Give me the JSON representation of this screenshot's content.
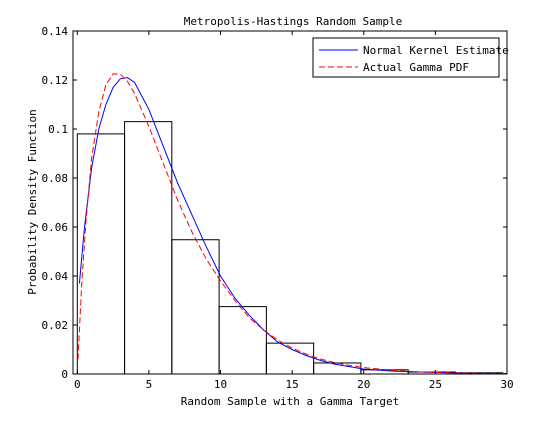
{
  "chart_data": {
    "type": "bar",
    "title": "Metropolis-Hastings Random Sample",
    "xlabel": "Random Sample with a Gamma Target",
    "ylabel": "Probability Density Function",
    "xlim": [
      -0.3,
      30
    ],
    "ylim": [
      0,
      0.14
    ],
    "xticks": [
      0,
      5,
      10,
      15,
      20,
      25,
      30
    ],
    "xtick_labels": [
      "0",
      "5",
      "10",
      "15",
      "20",
      "25",
      "30"
    ],
    "yticks": [
      0,
      0.02,
      0.04,
      0.06,
      0.08,
      0.1,
      0.12,
      0.14
    ],
    "ytick_labels": [
      "0",
      "0.02",
      "0.04",
      "0.06",
      "0.08",
      "0.1",
      "0.12",
      "0.14"
    ],
    "grid": false,
    "legend_position": "top-right",
    "histogram": {
      "bin_edges": [
        0,
        3.3,
        6.6,
        9.9,
        13.2,
        16.5,
        19.8,
        23.1,
        26.4,
        29.7
      ],
      "values": [
        0.098,
        0.103,
        0.0548,
        0.0275,
        0.0126,
        0.0045,
        0.0017,
        0.0008,
        0.0005
      ],
      "color": "#000000"
    },
    "series": [
      {
        "name": "Normal Kernel Estimate",
        "style": "solid",
        "color": "#0000ff",
        "x": [
          0.15,
          0.5,
          1.0,
          1.5,
          2.0,
          2.5,
          3.0,
          3.5,
          4.0,
          5.0,
          6.0,
          7.0,
          8.0,
          9.0,
          10.0,
          11.0,
          12.0,
          13.0,
          14.0,
          15.0,
          16.0,
          17.0,
          18.0,
          19.0,
          20.0,
          22.0,
          24.0,
          26.0,
          28.0,
          30.0
        ],
        "y": [
          0.037,
          0.06,
          0.084,
          0.1,
          0.11,
          0.117,
          0.1205,
          0.121,
          0.119,
          0.108,
          0.093,
          0.078,
          0.065,
          0.052,
          0.04,
          0.031,
          0.024,
          0.018,
          0.013,
          0.01,
          0.0075,
          0.0055,
          0.004,
          0.003,
          0.002,
          0.0012,
          0.0008,
          0.0005,
          0.0003,
          0.0002
        ]
      },
      {
        "name": "Actual Gamma PDF",
        "style": "dashed",
        "color": "#ff0000",
        "x": [
          0.05,
          0.3,
          0.6,
          1.0,
          1.5,
          2.0,
          2.5,
          3.0,
          3.5,
          4.0,
          5.0,
          6.0,
          7.0,
          8.0,
          9.0,
          10.0,
          11.0,
          12.0,
          13.0,
          14.0,
          15.0,
          16.0,
          17.0,
          18.0,
          19.0,
          20.0,
          22.0,
          24.0,
          26.0,
          28.0,
          30.0
        ],
        "y": [
          0.006,
          0.036,
          0.062,
          0.088,
          0.107,
          0.118,
          0.1225,
          0.1224,
          0.1195,
          0.1145,
          0.101,
          0.086,
          0.071,
          0.058,
          0.047,
          0.038,
          0.03,
          0.023,
          0.018,
          0.0138,
          0.0106,
          0.0081,
          0.0061,
          0.0046,
          0.0035,
          0.0026,
          0.0015,
          0.0008,
          0.0005,
          0.0003,
          0.0002
        ]
      }
    ]
  }
}
